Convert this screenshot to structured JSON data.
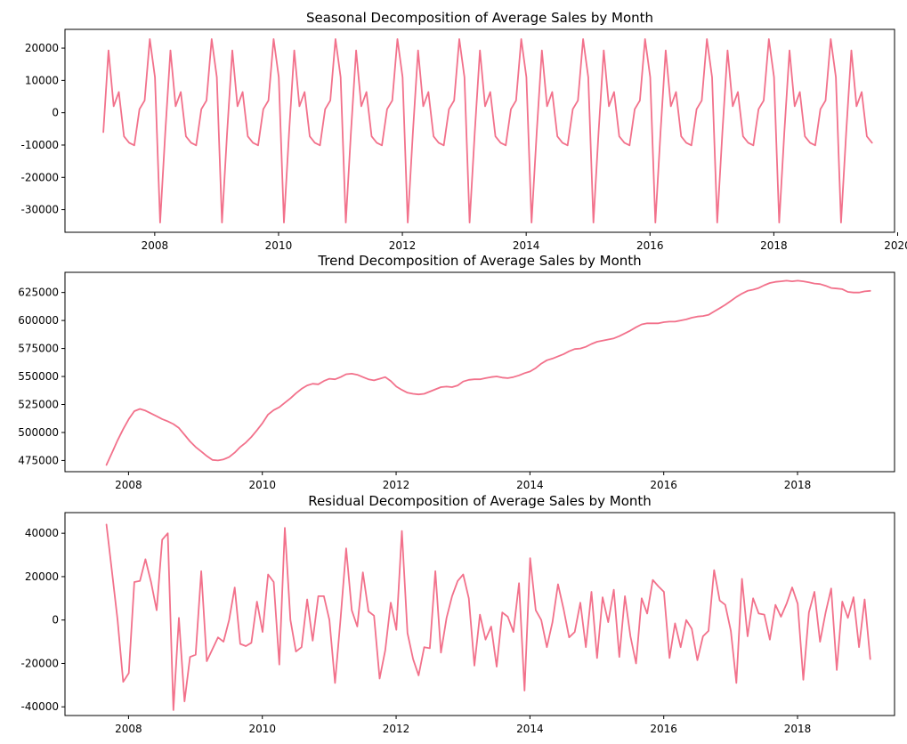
{
  "colors": {
    "line": "#f2718b"
  },
  "chart_data": [
    {
      "type": "line",
      "title": "Seasonal Decomposition of Average Sales by Month",
      "xlabel": "",
      "ylabel": "",
      "grid": false,
      "xlim": [
        2006.55,
        2019.95
      ],
      "ylim": [
        -37000,
        25800
      ],
      "x_ticks": [
        2008,
        2010,
        2012,
        2014,
        2016,
        2018,
        2020
      ],
      "y_ticks": [
        -30000,
        -20000,
        -10000,
        0,
        10000,
        20000
      ],
      "x_start": 2007.17,
      "x_step": 0.08333,
      "y": [
        -6000,
        19300,
        2000,
        6400,
        -7300,
        -9300,
        -10100,
        1100,
        3800,
        22800,
        11000,
        -34000,
        -6000,
        19300,
        2000,
        6400,
        -7300,
        -9300,
        -10100,
        1100,
        3800,
        22800,
        11000,
        -34000,
        -6000,
        19300,
        2000,
        6400,
        -7300,
        -9300,
        -10100,
        1100,
        3800,
        22800,
        11000,
        -34000,
        -6000,
        19300,
        2000,
        6400,
        -7300,
        -9300,
        -10100,
        1100,
        3800,
        22800,
        11000,
        -34000,
        -6000,
        19300,
        2000,
        6400,
        -7300,
        -9300,
        -10100,
        1100,
        3800,
        22800,
        11000,
        -34000,
        -6000,
        19300,
        2000,
        6400,
        -7300,
        -9300,
        -10100,
        1100,
        3800,
        22800,
        11000,
        -34000,
        -6000,
        19300,
        2000,
        6400,
        -7300,
        -9300,
        -10100,
        1100,
        3800,
        22800,
        11000,
        -34000,
        -6000,
        19300,
        2000,
        6400,
        -7300,
        -9300,
        -10100,
        1100,
        3800,
        22800,
        11000,
        -34000,
        -6000,
        19300,
        2000,
        6400,
        -7300,
        -9300,
        -10100,
        1100,
        3800,
        22800,
        11000,
        -34000,
        -6000,
        19300,
        2000,
        6400,
        -7300,
        -9300,
        -10100,
        1100,
        3800,
        22800,
        11000,
        -34000,
        -6000,
        19300,
        2000,
        6400,
        -7300,
        -9300,
        -10100,
        1100,
        3800,
        22800,
        11000,
        -34000,
        -6000,
        19300,
        2000,
        6400,
        -7300,
        -9300,
        -10100,
        1100,
        3800,
        22800,
        11000,
        -34000,
        -6000,
        19300,
        2000,
        6400,
        -7300,
        -9300
      ]
    },
    {
      "type": "line",
      "title": "Trend Decomposition of Average Sales by Month",
      "xlabel": "",
      "ylabel": "",
      "grid": false,
      "xlim": [
        2007.05,
        2019.45
      ],
      "ylim": [
        465000,
        643000
      ],
      "x_ticks": [
        2008,
        2010,
        2012,
        2014,
        2016,
        2018
      ],
      "y_ticks": [
        475000,
        500000,
        525000,
        550000,
        575000,
        600000,
        625000
      ],
      "x_start": 2007.67,
      "x_step": 0.08333,
      "y": [
        471000,
        482000,
        493000,
        503000,
        512000,
        519000,
        521000,
        519500,
        517000,
        514500,
        512000,
        510000,
        507500,
        504000,
        498000,
        492000,
        487000,
        483000,
        479000,
        475500,
        475000,
        476000,
        478000,
        482000,
        487000,
        491000,
        496000,
        502000,
        508500,
        516000,
        520000,
        522500,
        526500,
        530500,
        535000,
        539000,
        542000,
        543500,
        543000,
        546000,
        548000,
        547500,
        549500,
        552000,
        552500,
        551500,
        549500,
        547500,
        546500,
        548000,
        549500,
        546000,
        541000,
        538000,
        535500,
        534500,
        534000,
        534500,
        536500,
        538500,
        540500,
        541000,
        540500,
        542000,
        545500,
        547000,
        547500,
        547500,
        548500,
        549500,
        550000,
        549000,
        548500,
        549500,
        551000,
        553000,
        554500,
        557500,
        561500,
        564500,
        566000,
        568000,
        570000,
        572500,
        574500,
        575000,
        576500,
        579000,
        581000,
        582000,
        583000,
        584000,
        586000,
        588500,
        591000,
        594000,
        596500,
        597500,
        597500,
        597500,
        598500,
        599000,
        599000,
        600000,
        601000,
        602500,
        603500,
        604000,
        605000,
        608000,
        611000,
        614000,
        617500,
        621000,
        624000,
        626500,
        627500,
        629000,
        631500,
        633500,
        634500,
        635000,
        635500,
        635000,
        635500,
        635000,
        634000,
        633000,
        632500,
        631000,
        629000,
        628500,
        628000,
        625500,
        625000,
        625000,
        626000,
        626500
      ]
    },
    {
      "type": "line",
      "title": "Residual Decomposition of Average Sales by Month",
      "xlabel": "",
      "ylabel": "",
      "grid": false,
      "xlim": [
        2007.05,
        2019.45
      ],
      "ylim": [
        -44000,
        49500
      ],
      "x_ticks": [
        2008,
        2010,
        2012,
        2014,
        2016,
        2018
      ],
      "y_ticks": [
        -40000,
        -20000,
        0,
        20000,
        40000
      ],
      "x_start": 2007.67,
      "x_step": 0.08333,
      "y": [
        44000,
        22000,
        0,
        -28500,
        -24500,
        17500,
        18000,
        28000,
        17500,
        4500,
        37000,
        40000,
        -41500,
        1000,
        -37500,
        -17000,
        -16000,
        22500,
        -19000,
        -13500,
        -8000,
        -10000,
        0,
        15000,
        -11000,
        -12000,
        -10500,
        8500,
        -5500,
        21000,
        17500,
        -20500,
        42500,
        0,
        -14500,
        -12500,
        9500,
        -9500,
        11000,
        11000,
        0,
        -29000,
        1000,
        33000,
        4500,
        -3000,
        22000,
        4000,
        2000,
        -27000,
        -14000,
        8000,
        -4500,
        41000,
        -6000,
        -18000,
        -25500,
        -12500,
        -13000,
        22500,
        -15000,
        1000,
        11000,
        18000,
        21000,
        10000,
        -21000,
        2500,
        -9000,
        -3000,
        -21500,
        3500,
        1500,
        -5500,
        17000,
        -32500,
        28500,
        4500,
        0,
        -12500,
        -1000,
        16500,
        5000,
        -8000,
        -5500,
        8000,
        -12500,
        13000,
        -17500,
        10500,
        -1000,
        14000,
        -17000,
        11000,
        -7500,
        -20000,
        10000,
        3000,
        18500,
        15500,
        13000,
        -17500,
        -1500,
        -12500,
        0,
        -4000,
        -18500,
        -7500,
        -5000,
        23000,
        9000,
        7000,
        -5000,
        -29000,
        19000,
        -7500,
        10000,
        3000,
        2500,
        -9000,
        7000,
        1500,
        7500,
        15000,
        7500,
        -27500,
        3500,
        13000,
        -10000,
        3500,
        14500,
        -23000,
        8500,
        1000,
        10500,
        -12500,
        9500,
        -18000
      ]
    }
  ]
}
